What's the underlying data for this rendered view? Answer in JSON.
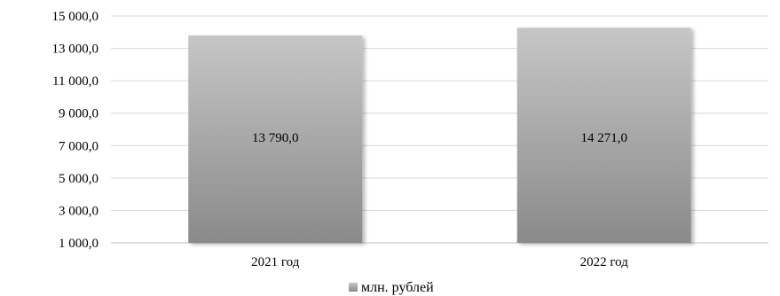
{
  "chart_data": {
    "type": "bar",
    "categories": [
      "2021 год",
      "2022 год"
    ],
    "series": [
      {
        "name": "млн. рублей",
        "values": [
          13790.0,
          14271.0
        ],
        "data_labels": [
          "13 790,0",
          "14 271,0"
        ]
      }
    ],
    "ylim": [
      1000,
      15000
    ],
    "yticks": [
      1000,
      3000,
      5000,
      7000,
      9000,
      11000,
      13000,
      15000
    ],
    "ytick_labels": [
      "1 000,0",
      "3 000,0",
      "5 000,0",
      "7 000,0",
      "9 000,0",
      "11 000,0",
      "13 000,0",
      "15 000,0"
    ],
    "grid": true,
    "legend_position": "bottom",
    "colors": {
      "bar_top": "#c6c6c6",
      "bar_bottom": "#8a8a8a",
      "grid": "#d9d9d9",
      "axis": "#bfbfbf"
    }
  }
}
